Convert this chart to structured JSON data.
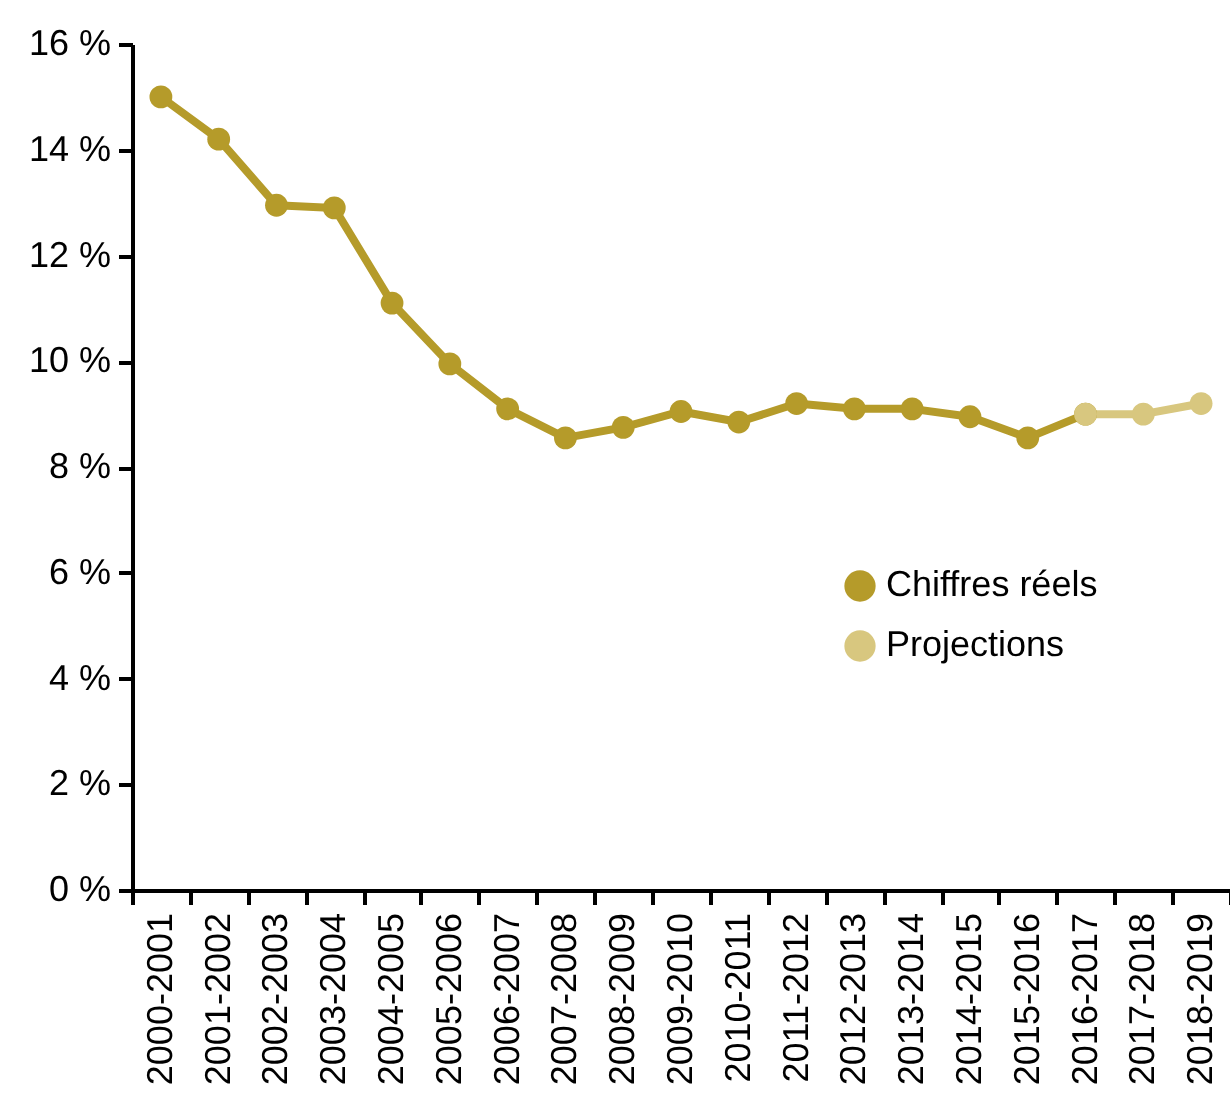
{
  "chart_data": {
    "type": "line",
    "categories": [
      "2000-2001",
      "2001-2002",
      "2002-2003",
      "2003-2004",
      "2004-2005",
      "2005-2006",
      "2006-2007",
      "2007-2008",
      "2008-2009",
      "2009-2010",
      "2010-2011",
      "2011-2012",
      "2012-2013",
      "2013-2014",
      "2014-2015",
      "2015-2016",
      "2016-2017",
      "2017-2018",
      "2018-2019"
    ],
    "series": [
      {
        "name": "Chiffres réels",
        "color": "#b59b2a",
        "values": [
          15.0,
          14.2,
          12.95,
          12.9,
          11.1,
          9.95,
          9.1,
          8.55,
          8.75,
          9.05,
          8.85,
          9.2,
          9.1,
          9.1,
          8.95,
          8.55,
          9.0,
          null,
          null
        ]
      },
      {
        "name": "Projections",
        "color": "#d8c77f",
        "values": [
          null,
          null,
          null,
          null,
          null,
          null,
          null,
          null,
          null,
          null,
          null,
          null,
          null,
          null,
          null,
          null,
          9.0,
          9.0,
          9.2
        ]
      }
    ],
    "ylim": [
      0,
      16
    ],
    "yticks": [
      {
        "value": 0,
        "label": "0 %"
      },
      {
        "value": 2,
        "label": "2 %"
      },
      {
        "value": 4,
        "label": "4 %"
      },
      {
        "value": 6,
        "label": "6 %"
      },
      {
        "value": 8,
        "label": "8 %"
      },
      {
        "value": 10,
        "label": "10 %"
      },
      {
        "value": 12,
        "label": "12 %"
      },
      {
        "value": 14,
        "label": "14 %"
      },
      {
        "value": 16,
        "label": "16 %"
      }
    ],
    "grid": false,
    "legend": "right",
    "marker": "circle",
    "line_style": "solid"
  }
}
